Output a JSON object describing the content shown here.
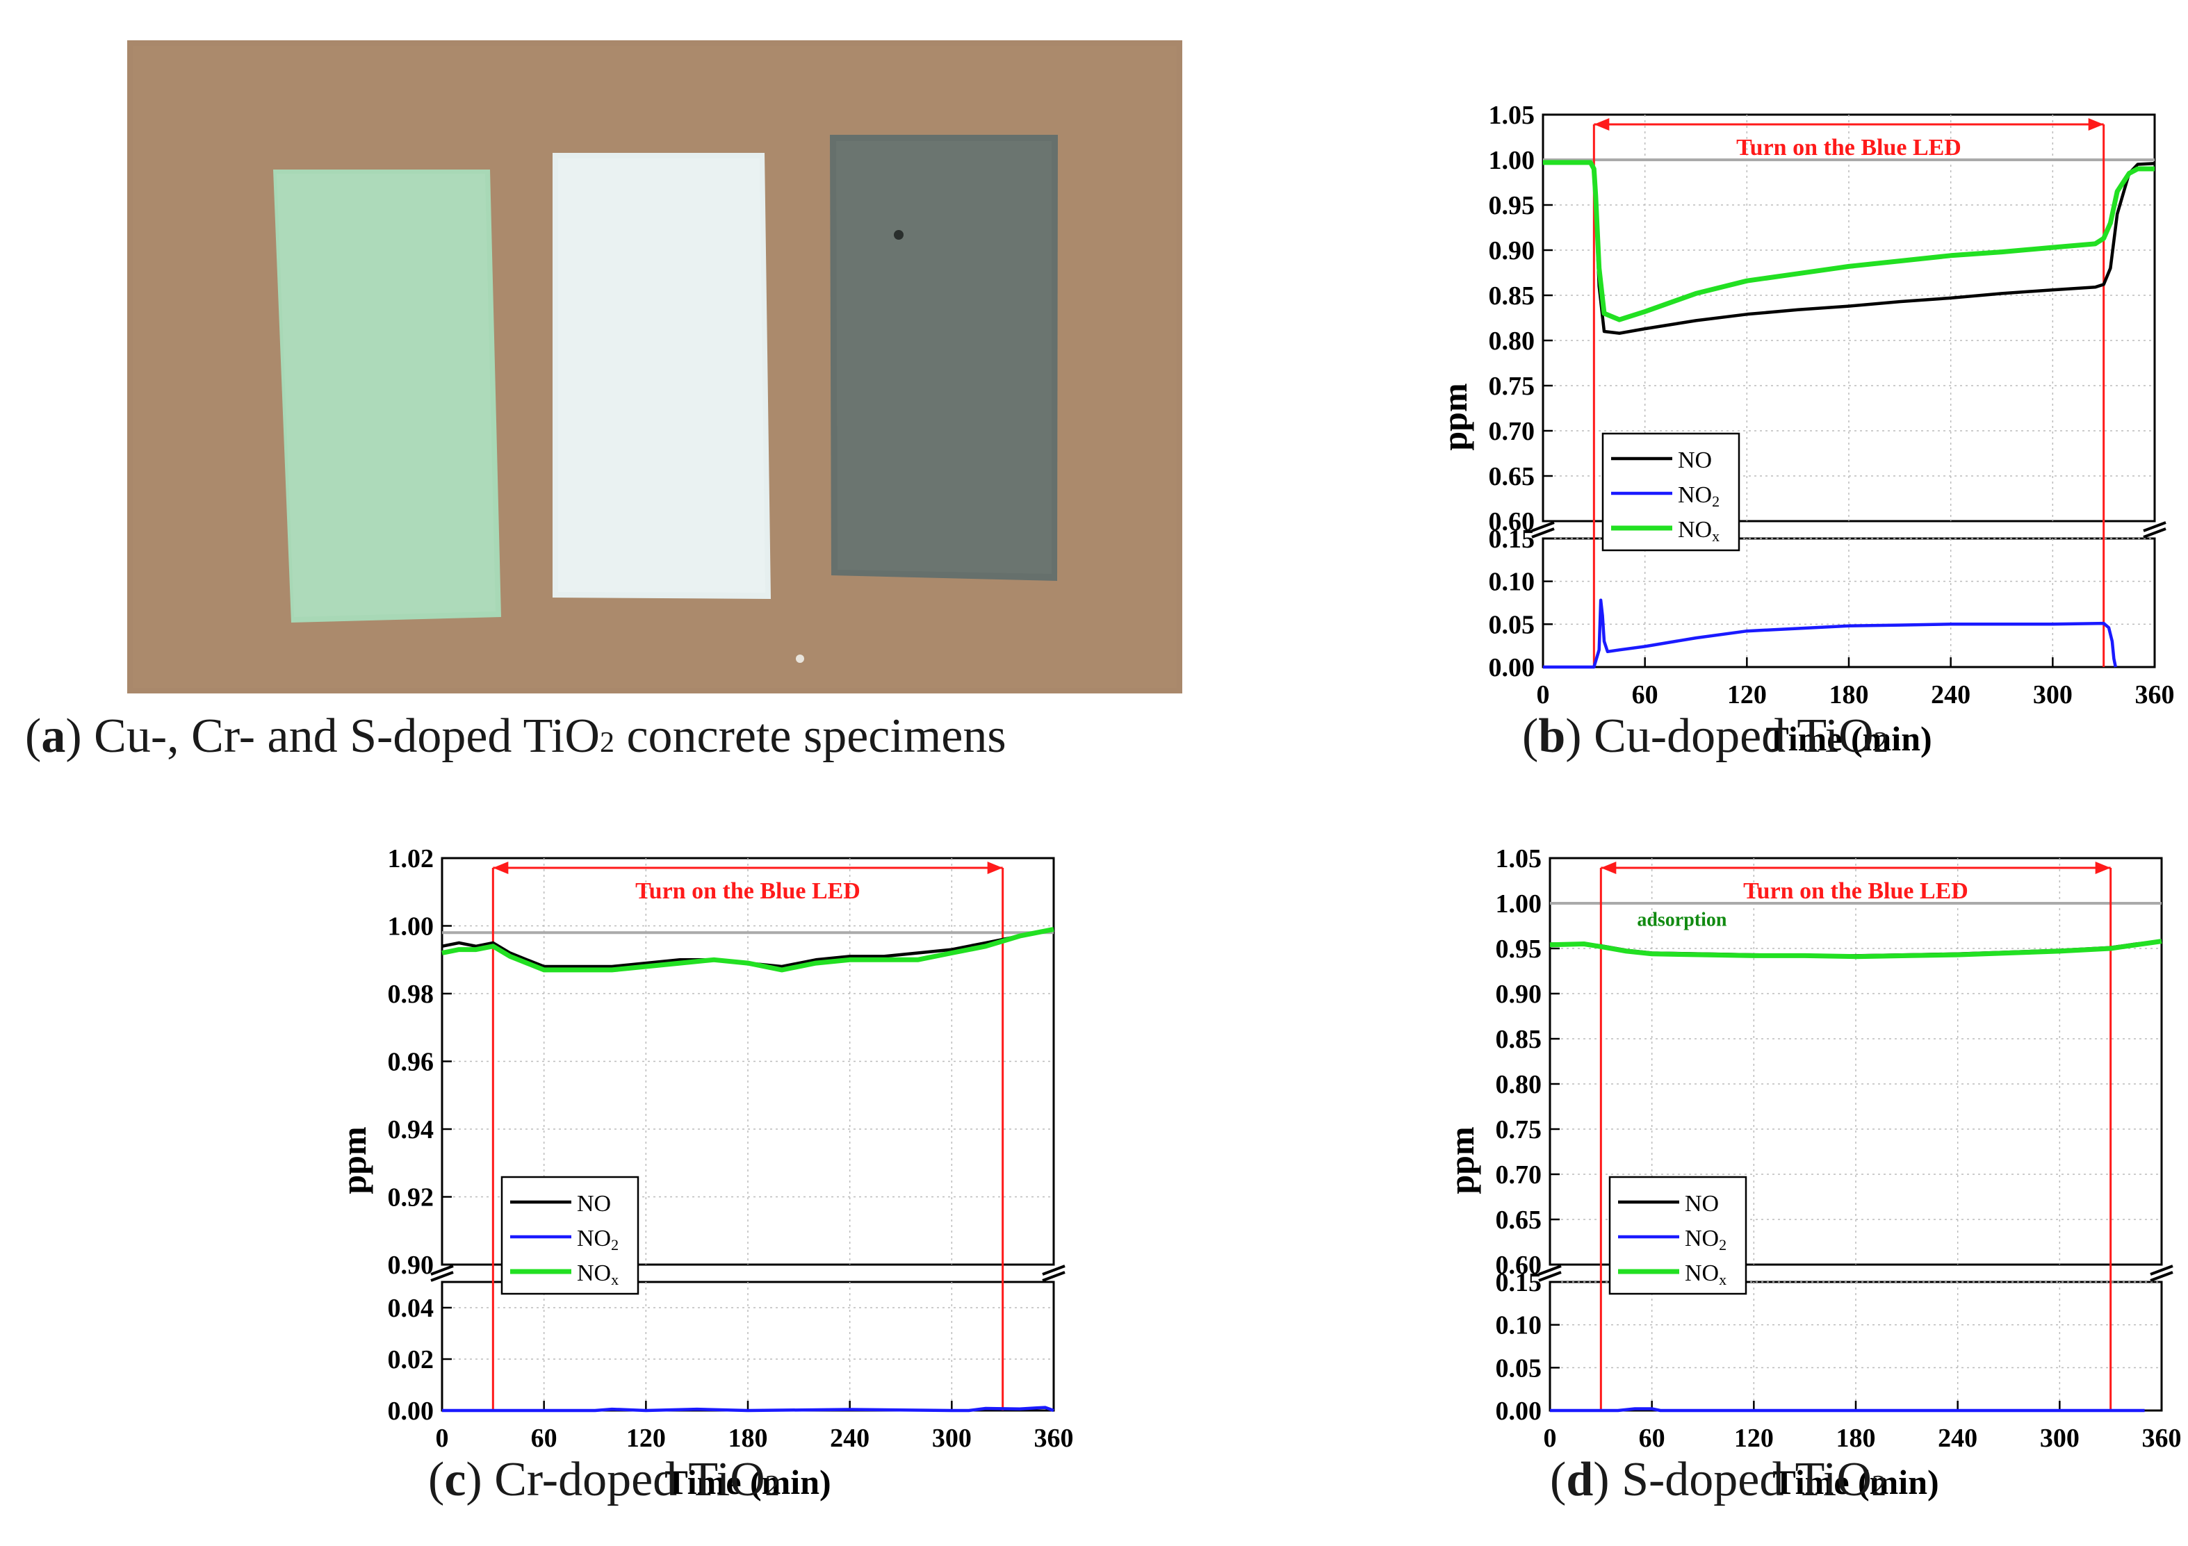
{
  "panel_a": {
    "caption_letter": "a",
    "caption_pre": "Cu-, Cr- and S-doped TiO",
    "caption_sub": "2",
    "caption_post": " concrete specimens"
  },
  "colors": {
    "NO": "#000000",
    "NO2": "#1a1aff",
    "NOx": "#22e022",
    "marker": "#ff1a1a",
    "baseline": "#aaaaaa"
  },
  "chart_data": [
    {
      "id": "b",
      "type": "line",
      "caption_letter": "b",
      "caption_text": "Cu-doped TiO",
      "caption_sub": "2",
      "title_annotation": "Turn on the Blue LED",
      "xlabel": "Time (min)",
      "ylabel": "ppm",
      "xlim": [
        0,
        360
      ],
      "xticks": [
        "0",
        "60",
        "120",
        "180",
        "240",
        "300",
        "360"
      ],
      "xtick_values": [
        0,
        60,
        120,
        180,
        240,
        300,
        360
      ],
      "upper": {
        "ylim": [
          0.6,
          1.05
        ],
        "ticks": [
          0.6,
          0.65,
          0.7,
          0.75,
          0.8,
          0.85,
          0.9,
          0.95,
          1.0,
          1.05
        ],
        "labels": [
          "0.60",
          "0.65",
          "0.70",
          "0.75",
          "0.80",
          "0.85",
          "0.90",
          "0.95",
          "1.00",
          "1.05"
        ]
      },
      "lower": {
        "ylim": [
          0.0,
          0.15
        ],
        "ticks": [
          0.0,
          0.05,
          0.1,
          0.15
        ],
        "labels": [
          "0.00",
          "0.05",
          "0.10",
          "0.15"
        ]
      },
      "led_on": [
        30,
        330
      ],
      "baseline": 1.0,
      "legend": [
        "NO",
        "NO",
        "NO"
      ],
      "legend_subs": [
        "",
        "2",
        "x"
      ],
      "series": [
        {
          "name": "NO",
          "x": [
            0,
            28,
            30,
            31,
            33,
            36,
            45,
            60,
            90,
            120,
            150,
            180,
            210,
            240,
            270,
            300,
            325,
            330,
            334,
            338,
            345,
            350,
            360
          ],
          "y": [
            0.997,
            0.997,
            0.99,
            0.95,
            0.86,
            0.81,
            0.808,
            0.813,
            0.822,
            0.829,
            0.834,
            0.838,
            0.843,
            0.847,
            0.852,
            0.856,
            0.859,
            0.862,
            0.88,
            0.94,
            0.985,
            0.995,
            0.996
          ]
        },
        {
          "name": "NO2",
          "x": [
            0,
            30,
            33,
            34,
            35,
            36,
            38,
            45,
            60,
            90,
            120,
            150,
            180,
            210,
            240,
            270,
            300,
            330,
            333,
            335,
            336,
            337
          ],
          "y": [
            0.0,
            0.0,
            0.02,
            0.078,
            0.06,
            0.03,
            0.018,
            0.02,
            0.024,
            0.034,
            0.042,
            0.045,
            0.048,
            0.049,
            0.05,
            0.05,
            0.05,
            0.051,
            0.046,
            0.03,
            0.01,
            0.0
          ]
        },
        {
          "name": "NOx",
          "x": [
            0,
            28,
            30,
            31,
            33,
            36,
            45,
            60,
            90,
            120,
            150,
            180,
            210,
            240,
            270,
            300,
            325,
            330,
            334,
            338,
            345,
            350,
            360
          ],
          "y": [
            0.997,
            0.997,
            0.99,
            0.96,
            0.88,
            0.83,
            0.823,
            0.832,
            0.852,
            0.866,
            0.874,
            0.882,
            0.888,
            0.894,
            0.898,
            0.903,
            0.907,
            0.913,
            0.93,
            0.965,
            0.985,
            0.99,
            0.99
          ]
        }
      ]
    },
    {
      "id": "c",
      "type": "line",
      "caption_letter": "c",
      "caption_text": "Cr-doped TiO",
      "caption_sub": "2",
      "title_annotation": "Turn on the Blue LED",
      "xlabel": "Time (min)",
      "ylabel": "ppm",
      "xlim": [
        0,
        360
      ],
      "xticks": [
        "0",
        "60",
        "120",
        "180",
        "240",
        "300",
        "360"
      ],
      "xtick_values": [
        0,
        60,
        120,
        180,
        240,
        300,
        360
      ],
      "upper": {
        "ylim": [
          0.9,
          1.02
        ],
        "ticks": [
          0.9,
          0.92,
          0.94,
          0.96,
          0.98,
          1.0,
          1.02
        ],
        "labels": [
          "0.90",
          "0.92",
          "0.94",
          "0.96",
          "0.98",
          "1.00",
          "1.02"
        ]
      },
      "lower": {
        "ylim": [
          0.0,
          0.05
        ],
        "ticks": [
          0.0,
          0.02,
          0.04
        ],
        "labels": [
          "0.00",
          "0.02",
          "0.04"
        ]
      },
      "led_on": [
        30,
        330
      ],
      "baseline": 0.998,
      "legend": [
        "NO",
        "NO",
        "NO"
      ],
      "legend_subs": [
        "",
        "2",
        "x"
      ],
      "series": [
        {
          "name": "NO",
          "x": [
            0,
            10,
            20,
            30,
            40,
            50,
            60,
            80,
            100,
            120,
            140,
            160,
            180,
            200,
            220,
            240,
            260,
            280,
            300,
            320,
            340,
            360
          ],
          "y": [
            0.994,
            0.995,
            0.994,
            0.995,
            0.992,
            0.99,
            0.988,
            0.988,
            0.988,
            0.989,
            0.99,
            0.99,
            0.989,
            0.988,
            0.99,
            0.991,
            0.991,
            0.992,
            0.993,
            0.995,
            0.997,
            0.999
          ]
        },
        {
          "name": "NO2",
          "x": [
            0,
            30,
            60,
            90,
            100,
            120,
            150,
            180,
            240,
            300,
            310,
            320,
            330,
            340,
            350,
            355,
            360
          ],
          "y": [
            0.0,
            0.0,
            0.0,
            0.0,
            0.0005,
            0.0,
            0.0005,
            0.0,
            0.0004,
            0.0,
            0.0,
            0.0008,
            0.0007,
            0.0006,
            0.001,
            0.0012,
            0.0
          ]
        },
        {
          "name": "NOx",
          "x": [
            0,
            10,
            20,
            30,
            40,
            50,
            60,
            80,
            100,
            120,
            140,
            160,
            180,
            200,
            220,
            240,
            260,
            280,
            300,
            320,
            340,
            360
          ],
          "y": [
            0.992,
            0.993,
            0.993,
            0.994,
            0.991,
            0.989,
            0.987,
            0.987,
            0.987,
            0.988,
            0.989,
            0.99,
            0.989,
            0.987,
            0.989,
            0.99,
            0.99,
            0.99,
            0.992,
            0.994,
            0.997,
            0.999
          ]
        }
      ]
    },
    {
      "id": "d",
      "type": "line",
      "caption_letter": "d",
      "caption_text": "S-doped TiO",
      "caption_sub": "2",
      "title_annotation": "Turn on the Blue LED",
      "annotation_2": "adsorption",
      "xlabel": "Time (min)",
      "ylabel": "ppm",
      "xlim": [
        0,
        360
      ],
      "xticks": [
        "0",
        "60",
        "120",
        "180",
        "240",
        "300",
        "360"
      ],
      "xtick_values": [
        0,
        60,
        120,
        180,
        240,
        300,
        360
      ],
      "upper": {
        "ylim": [
          0.6,
          1.05
        ],
        "ticks": [
          0.6,
          0.65,
          0.7,
          0.75,
          0.8,
          0.85,
          0.9,
          0.95,
          1.0,
          1.05
        ],
        "labels": [
          "0.60",
          "0.65",
          "0.70",
          "0.75",
          "0.80",
          "0.85",
          "0.90",
          "0.95",
          "1.00",
          "1.05"
        ]
      },
      "lower": {
        "ylim": [
          0.0,
          0.15
        ],
        "ticks": [
          0.0,
          0.05,
          0.1,
          0.15
        ],
        "labels": [
          "0.00",
          "0.05",
          "0.10",
          "0.15"
        ]
      },
      "led_on": [
        30,
        330
      ],
      "baseline": 1.0,
      "legend": [
        "NO",
        "NO",
        "NO"
      ],
      "legend_subs": [
        "",
        "2",
        "x"
      ],
      "series": [
        {
          "name": "NO",
          "x": [
            0,
            20,
            30,
            45,
            60,
            90,
            120,
            150,
            180,
            210,
            240,
            270,
            300,
            330,
            345,
            360
          ],
          "y": [
            0.955,
            0.955,
            0.953,
            0.948,
            0.945,
            0.944,
            0.943,
            0.942,
            0.942,
            0.943,
            0.944,
            0.946,
            0.948,
            0.951,
            0.955,
            0.958
          ]
        },
        {
          "name": "NO2",
          "x": [
            0,
            40,
            50,
            60,
            65,
            90,
            120,
            180,
            240,
            300,
            350
          ],
          "y": [
            0.0,
            0.0,
            0.002,
            0.002,
            0.0,
            0.0,
            0.0,
            0.0,
            0.0,
            0.0,
            0.0
          ]
        },
        {
          "name": "NOx",
          "x": [
            0,
            20,
            30,
            45,
            60,
            90,
            120,
            150,
            180,
            210,
            240,
            270,
            300,
            330,
            345,
            360
          ],
          "y": [
            0.954,
            0.955,
            0.952,
            0.947,
            0.944,
            0.943,
            0.942,
            0.942,
            0.941,
            0.942,
            0.943,
            0.945,
            0.947,
            0.95,
            0.954,
            0.958
          ]
        }
      ]
    }
  ]
}
